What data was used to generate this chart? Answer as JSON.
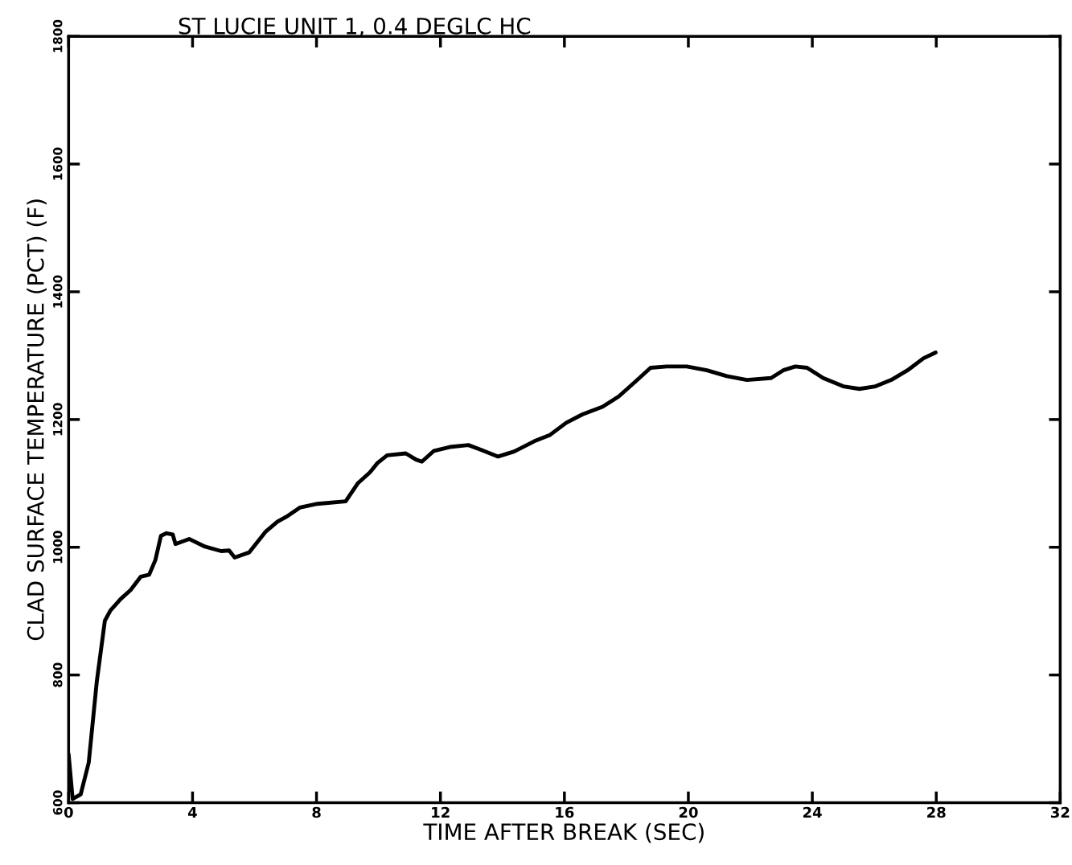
{
  "chart_data": {
    "type": "line",
    "title": "ST LUCIE UNIT 1, 0.4 DEGLC HC",
    "xlabel": "TIME AFTER BREAK (SEC)",
    "ylabel": "CLAD SURFACE TEMPERATURE (PCT) (F)",
    "xlim": [
      0,
      32
    ],
    "xticks": [
      0,
      4,
      8,
      12,
      16,
      20,
      24,
      28,
      32
    ],
    "ylim": [
      600,
      1800
    ],
    "yticks": [
      600,
      800,
      1000,
      1200,
      1400,
      1600,
      1800
    ],
    "grid": false,
    "legend": false,
    "series": [
      {
        "color": "#000000",
        "x": [
          0,
          0.13,
          0.39,
          0.65,
          0.91,
          1.17,
          1.35,
          1.68,
          2.0,
          2.33,
          2.6,
          2.8,
          2.98,
          3.16,
          3.36,
          3.45,
          3.89,
          4.4,
          4.92,
          5.18,
          5.36,
          5.83,
          6.35,
          6.74,
          7.07,
          7.46,
          8.03,
          8.94,
          9.33,
          9.72,
          9.97,
          10.28,
          10.88,
          11.22,
          11.4,
          11.79,
          12.3,
          12.9,
          13.29,
          13.86,
          14.38,
          15.03,
          15.54,
          16.06,
          16.58,
          17.23,
          17.75,
          18.26,
          18.78,
          19.3,
          19.95,
          20.6,
          21.24,
          21.89,
          22.67,
          23.06,
          23.45,
          23.83,
          24.35,
          25.0,
          25.52,
          26.04,
          26.55,
          27.07,
          27.59,
          27.98
        ],
        "values": [
          676,
          606,
          613,
          663,
          790,
          885,
          901,
          919,
          933,
          954,
          957,
          980,
          1018,
          1022,
          1020,
          1005,
          1013,
          1001,
          994,
          995,
          984,
          992,
          1024,
          1040,
          1049,
          1062,
          1068,
          1072,
          1100,
          1117,
          1132,
          1144,
          1147,
          1137,
          1134,
          1151,
          1157,
          1160,
          1153,
          1142,
          1150,
          1166,
          1176,
          1195,
          1208,
          1220,
          1236,
          1258,
          1281,
          1283,
          1283,
          1277,
          1268,
          1262,
          1265,
          1277,
          1283,
          1281,
          1265,
          1252,
          1248,
          1252,
          1262,
          1277,
          1296,
          1305
        ]
      }
    ]
  }
}
